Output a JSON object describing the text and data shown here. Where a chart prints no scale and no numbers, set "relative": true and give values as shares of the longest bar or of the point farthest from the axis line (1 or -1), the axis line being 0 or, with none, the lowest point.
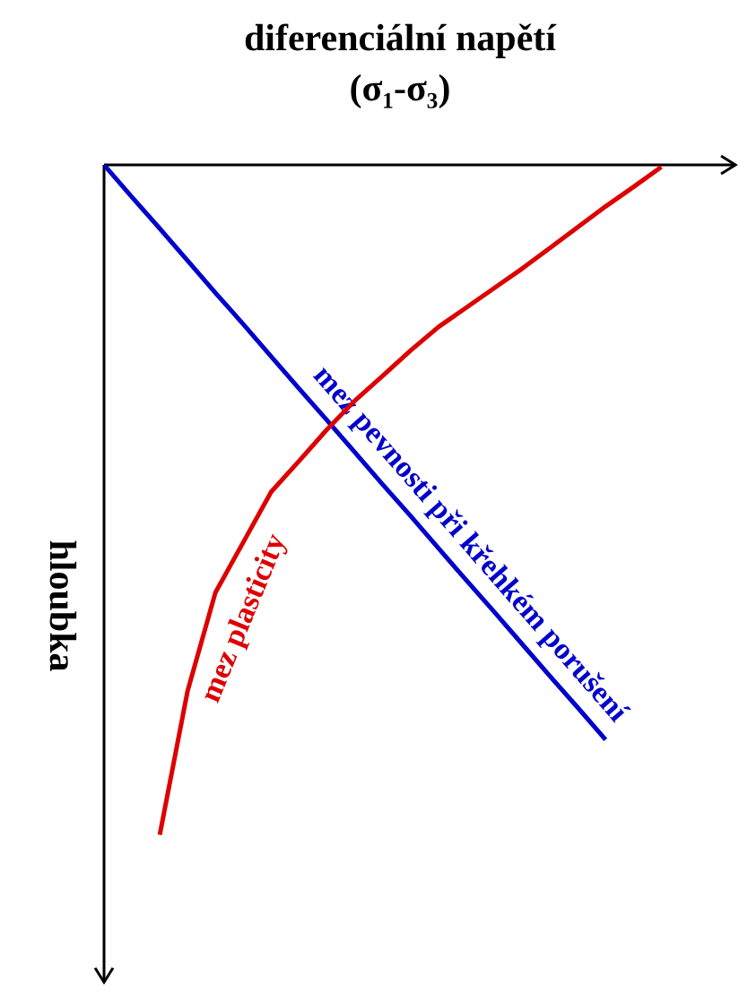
{
  "chart_data": {
    "type": "line",
    "relative": true,
    "xlabel": "diferenciální napětí\n(σ₁-σ₃)",
    "ylabel": "hloubka",
    "categories": [
      null,
      null,
      null,
      null,
      null,
      null,
      null,
      null,
      null,
      null,
      null,
      null,
      null,
      null,
      null,
      null,
      null,
      null,
      null,
      null,
      null
    ],
    "grid": false,
    "legend": false,
    "marker": "none",
    "line_style": "solid",
    "series": [
      {
        "name": "mez pevnosti při křehkém porušení",
        "color": "#0000cc",
        "values": [
          0,
          -0.048,
          -0.095,
          -0.143,
          -0.191,
          -0.238,
          -0.286,
          -0.334,
          -0.381,
          -0.429,
          -0.477,
          -0.524,
          -0.572,
          -0.62,
          -0.667,
          -0.715,
          -0.763,
          -0.81,
          -0.858,
          null,
          null
        ]
      },
      {
        "name": "mez plasticity",
        "color": "#dd0000",
        "values": [
          null,
          null,
          -1.0,
          -0.785,
          -0.638,
          -0.563,
          -0.488,
          -0.442,
          -0.395,
          -0.352,
          -0.315,
          -0.277,
          -0.242,
          -0.213,
          -0.184,
          -0.155,
          -0.124,
          -0.093,
          -0.062,
          -0.033,
          -0.003
        ]
      }
    ]
  }
}
